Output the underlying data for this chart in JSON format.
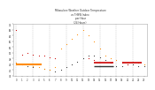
{
  "title": "Milwaukee Weather Outdoor Temperature\nvs THSW Index\nper Hour\n(24 Hours)",
  "fig_bg_color": "#ffffff",
  "plot_bg_color": "#ffffff",
  "color_orange": "#ff8c00",
  "color_red": "#cc0000",
  "color_black": "#222222",
  "color_dark": "#333333",
  "grid_color": "#aaaaaa",
  "tick_color": "#333333",
  "title_color": "#333333",
  "temp_black": [
    [
      0,
      45
    ],
    [
      1,
      44
    ],
    [
      2,
      43
    ],
    [
      3,
      42
    ],
    [
      5,
      41
    ],
    [
      6,
      40
    ],
    [
      7,
      39
    ],
    [
      8,
      40
    ],
    [
      9,
      42
    ],
    [
      10,
      44
    ],
    [
      11,
      46
    ],
    [
      12,
      48
    ],
    [
      13,
      50
    ],
    [
      14,
      50
    ],
    [
      15,
      49
    ],
    [
      16,
      47
    ],
    [
      17,
      45
    ],
    [
      18,
      43
    ],
    [
      19,
      43
    ],
    [
      20,
      44
    ],
    [
      21,
      44
    ],
    [
      22,
      43
    ],
    [
      23,
      43
    ]
  ],
  "thsw_orange": [
    [
      8,
      55
    ],
    [
      9,
      58
    ],
    [
      10,
      62
    ],
    [
      11,
      65
    ],
    [
      12,
      68
    ],
    [
      13,
      64
    ],
    [
      14,
      60
    ],
    [
      15,
      55
    ],
    [
      16,
      50
    ],
    [
      17,
      48
    ],
    [
      18,
      47
    ],
    [
      19,
      46
    ]
  ],
  "thsw_orange2": [
    [
      0,
      45
    ],
    [
      1,
      44
    ],
    [
      3,
      43
    ],
    [
      4,
      42
    ],
    [
      5,
      41
    ],
    [
      6,
      40
    ],
    [
      7,
      42
    ],
    [
      20,
      45
    ],
    [
      21,
      46
    ],
    [
      22,
      45
    ],
    [
      23,
      44
    ]
  ],
  "scatter_red": [
    [
      1,
      51
    ],
    [
      2,
      52
    ],
    [
      3,
      51
    ],
    [
      4,
      50
    ],
    [
      5,
      50
    ],
    [
      6,
      49
    ],
    [
      7,
      48
    ],
    [
      13,
      48
    ],
    [
      14,
      47
    ],
    [
      19,
      45
    ],
    [
      20,
      44
    ]
  ],
  "scatter_red2": [
    [
      0,
      68
    ]
  ],
  "orange_hline": {
    "y": 44,
    "x_start": 0,
    "x_end": 4.5
  },
  "red_hline1": {
    "y": 45,
    "x_start": 14,
    "x_end": 17.5
  },
  "red_hline2": {
    "y": 45,
    "x_start": 19,
    "x_end": 22.5
  },
  "black_hline": {
    "y": 43,
    "x_start": 14,
    "x_end": 17.5
  },
  "ylim": [
    36,
    72
  ],
  "xlim": [
    -0.5,
    23.5
  ],
  "ytick_vals": [
    36,
    40,
    44,
    48,
    52,
    56,
    60,
    64,
    68,
    72
  ],
  "ytick_labels": [
    "36",
    "40",
    "44",
    "48",
    "52",
    "56",
    "60",
    "64",
    "68",
    "72"
  ],
  "xtick_vals": [
    0,
    1,
    2,
    3,
    4,
    5,
    6,
    7,
    8,
    9,
    10,
    11,
    12,
    13,
    14,
    15,
    16,
    17,
    18,
    19,
    20,
    21,
    22,
    23
  ],
  "vgrid_x": [
    0,
    3,
    6,
    9,
    12,
    15,
    18,
    21
  ]
}
